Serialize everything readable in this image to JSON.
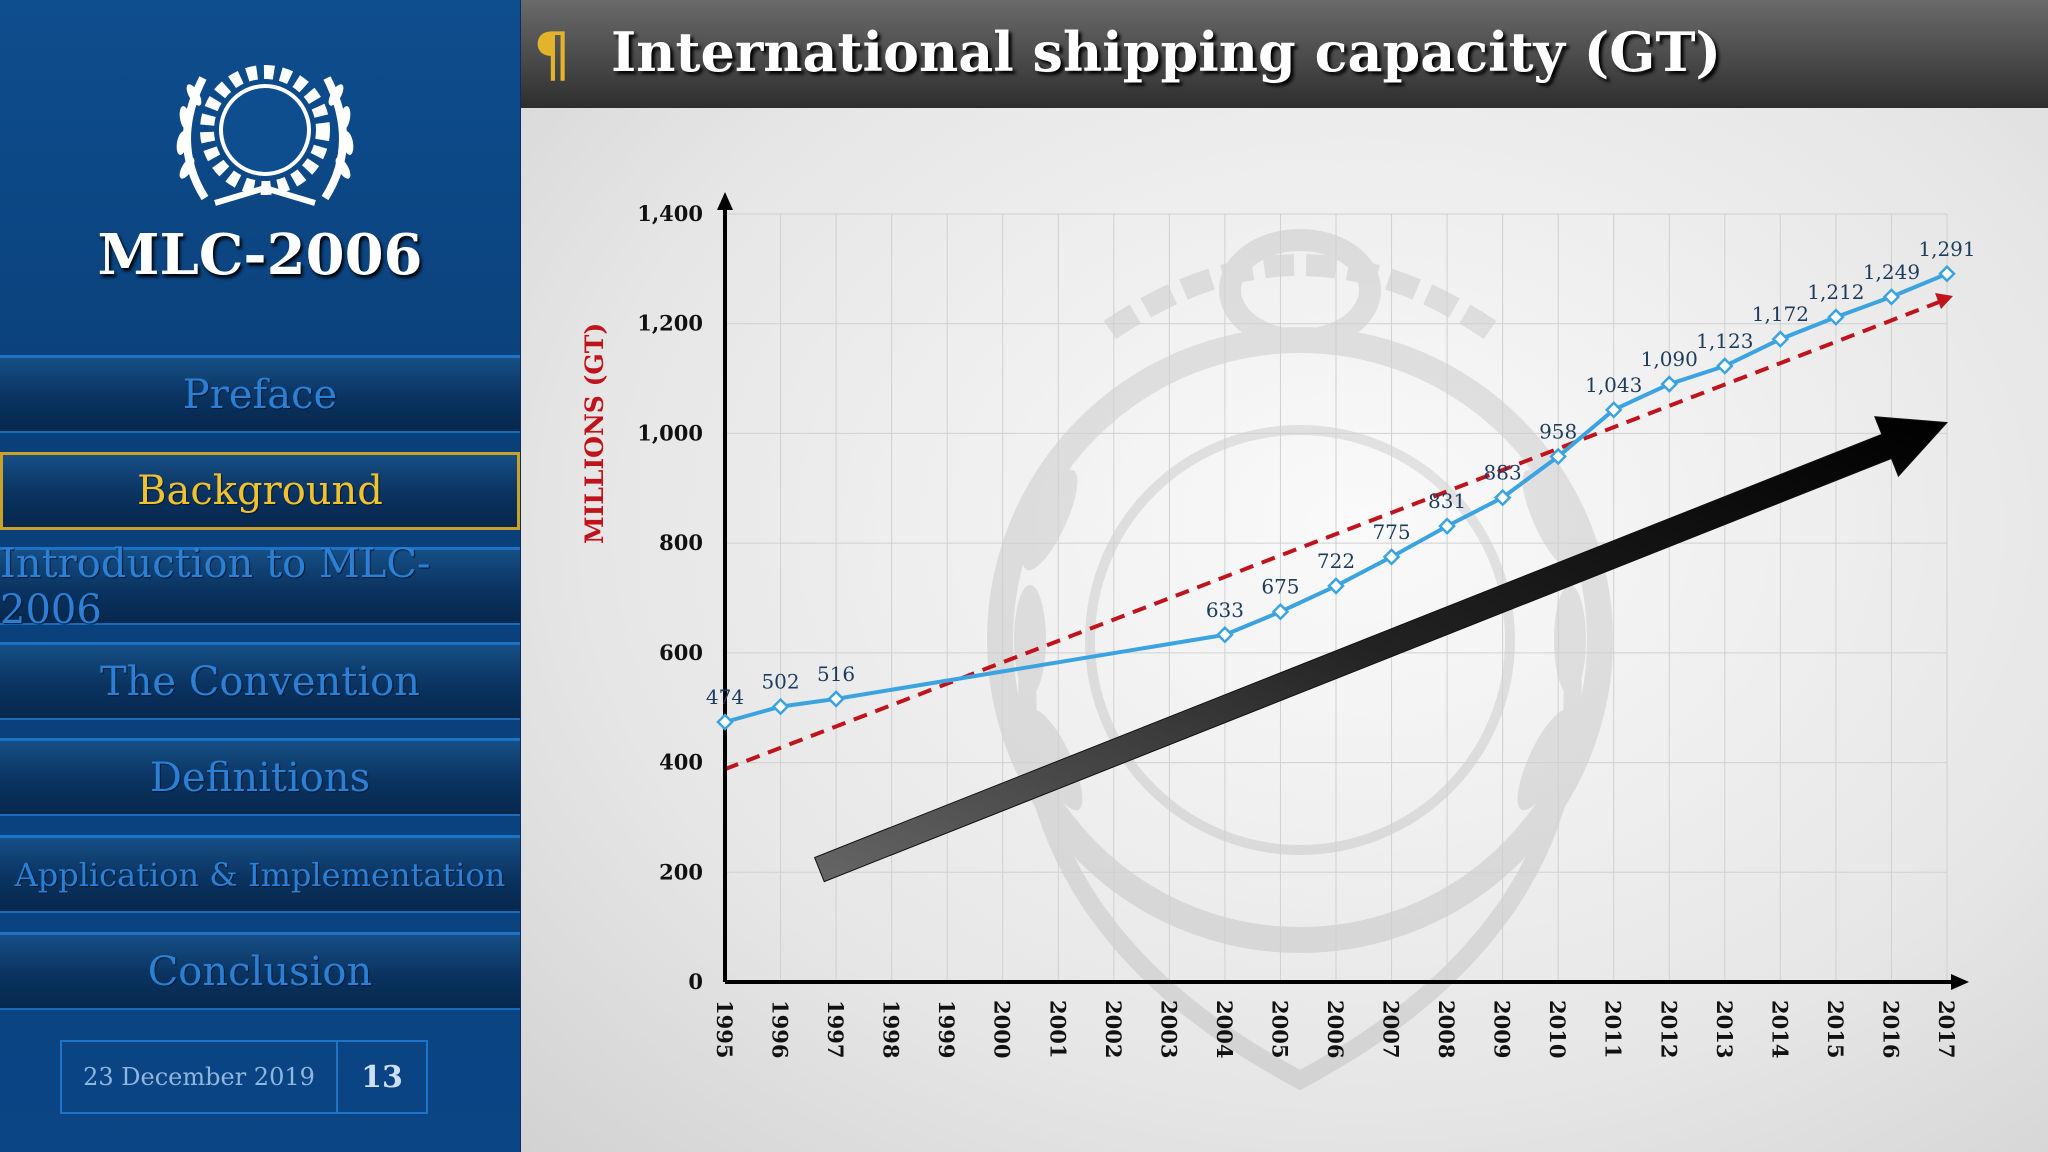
{
  "sidebar": {
    "brand": "MLC-2006",
    "nav": [
      {
        "label": "Preface",
        "active": false
      },
      {
        "label": "Background",
        "active": true
      },
      {
        "label": "Introduction to MLC-2006",
        "active": false
      },
      {
        "label": "The Convention",
        "active": false
      },
      {
        "label": "Definitions",
        "active": false
      },
      {
        "label": "Application & Implementation",
        "active": false
      },
      {
        "label": "Conclusion",
        "active": false
      }
    ],
    "date": "23 December 2019",
    "page": "13"
  },
  "header": {
    "bullet_icon": "pilcrow-icon",
    "title": "International shipping capacity (GT)"
  },
  "colors": {
    "line": "#3ba3e0",
    "trend": "#c0141c",
    "ylabel": "#c0141c",
    "active_nav": "#f2c12e",
    "nav_text": "#2b7fd4"
  },
  "chart_data": {
    "type": "line",
    "title": "",
    "xlabel": "",
    "ylabel": "MILLIONS (GT)",
    "x": [
      1995,
      1996,
      1997,
      1998,
      1999,
      2000,
      2001,
      2002,
      2003,
      2004,
      2005,
      2006,
      2007,
      2008,
      2009,
      2010,
      2011,
      2012,
      2013,
      2014,
      2015,
      2016,
      2017
    ],
    "ylim": [
      0,
      1400
    ],
    "yticks": [
      0,
      200,
      400,
      600,
      800,
      1000,
      1200,
      1400
    ],
    "ytick_labels": [
      "0",
      "200",
      "400",
      "600",
      "800",
      "1,000",
      "1,200",
      "1,400"
    ],
    "grid": true,
    "series": [
      {
        "x": [
          1995,
          1996,
          1997,
          2004,
          2005,
          2006,
          2007,
          2008,
          2009,
          2010,
          2011,
          2012,
          2013,
          2014,
          2015,
          2016,
          2017
        ],
        "values": [
          474,
          502,
          516,
          633,
          675,
          722,
          775,
          831,
          883,
          958,
          1043,
          1090,
          1123,
          1172,
          1212,
          1249,
          1291
        ],
        "labels": [
          "474",
          "502",
          "516",
          "633",
          "675",
          "722",
          "775",
          "831",
          "883",
          "958",
          "1,043",
          "1,090",
          "1,123",
          "1,172",
          "1,212",
          "1,249",
          "1,291"
        ]
      }
    ],
    "trendline": {
      "style": "dashed",
      "from": [
        1995,
        388
      ],
      "to": [
        2017,
        1245
      ]
    },
    "arrow": {
      "from": [
        1996.7,
        205
      ],
      "to": [
        2017,
        1020
      ]
    }
  }
}
